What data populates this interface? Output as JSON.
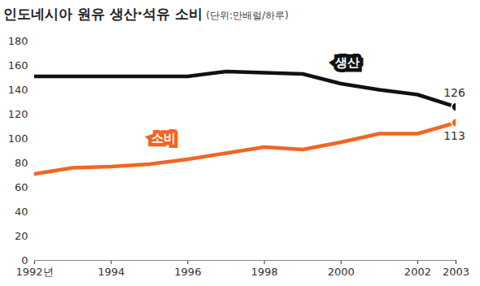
{
  "chart_data": {
    "type": "line",
    "title": "인도네시아 원유 생산·석유 소비",
    "subtitle": "(단위:만배럴/하루)",
    "x": [
      1992,
      1993,
      1994,
      1995,
      1996,
      1997,
      1998,
      1999,
      2000,
      2001,
      2002,
      2003
    ],
    "series": [
      {
        "name": "생산",
        "color": "#111111",
        "values": [
          151,
          151,
          151,
          151,
          151,
          155,
          154,
          153,
          145,
          140,
          136,
          126
        ],
        "value_labels": [
          null,
          null,
          null,
          null,
          null,
          null,
          null,
          null,
          null,
          null,
          null,
          "126"
        ]
      },
      {
        "name": "소비",
        "color": "#f26522",
        "values": [
          71,
          76,
          77,
          79,
          83,
          88,
          93,
          91,
          97,
          104,
          104,
          113
        ],
        "value_labels": [
          null,
          null,
          null,
          null,
          null,
          null,
          null,
          null,
          null,
          null,
          null,
          "113"
        ]
      }
    ],
    "xlim": [
      1992,
      2003
    ],
    "xticks": [
      {
        "value": 1992,
        "label": "1992년"
      },
      1994,
      1996,
      1998,
      2000,
      2002,
      2003
    ],
    "ylim": [
      0,
      180
    ],
    "yticks": [
      0,
      20,
      40,
      60,
      80,
      100,
      120,
      140,
      160,
      180
    ],
    "grid": false,
    "data_labels": true
  }
}
